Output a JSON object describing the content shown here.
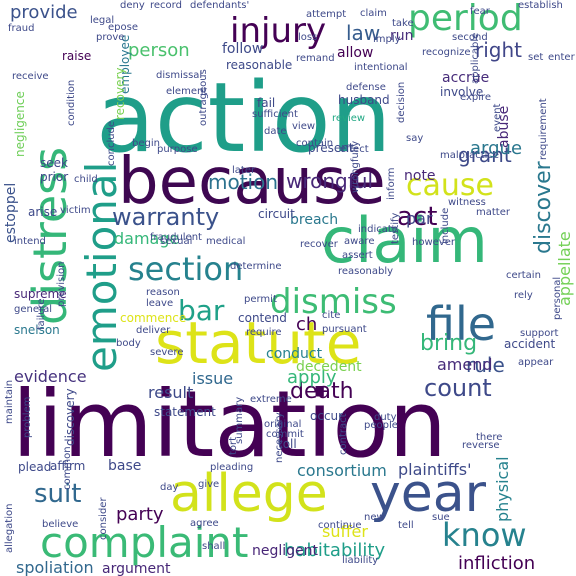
{
  "words": [
    {
      "text": "action",
      "color": "#1f9e89"
    },
    {
      "text": "limitation",
      "color": "#440154"
    },
    {
      "text": "because",
      "color": "#3e0751"
    },
    {
      "text": "distress",
      "color": "#35b779"
    },
    {
      "text": "emotional",
      "color": "#1f9e89"
    },
    {
      "text": "claim",
      "color": "#35b779"
    },
    {
      "text": "statute",
      "color": "#dde318"
    },
    {
      "text": "allege",
      "color": "#d2e21b"
    },
    {
      "text": "year",
      "color": "#3b528b"
    },
    {
      "text": "complaint",
      "color": "#3aba76"
    },
    {
      "text": "file",
      "color": "#31688e"
    },
    {
      "text": "period",
      "color": "#3fbc73"
    },
    {
      "text": "injury",
      "color": "#440154"
    },
    {
      "text": "cause",
      "color": "#d2e21b"
    },
    {
      "text": "section",
      "color": "#26828e"
    },
    {
      "text": "dismiss",
      "color": "#3dbc74"
    },
    {
      "text": "bar",
      "color": "#1fa188"
    },
    {
      "text": "warranty",
      "color": "#3b528b"
    },
    {
      "text": "act",
      "color": "#440154"
    },
    {
      "text": "know",
      "color": "#26828e"
    },
    {
      "text": "suit",
      "color": "#31688e"
    },
    {
      "text": "count",
      "color": "#3e4989"
    },
    {
      "text": "bring",
      "color": "#35b779"
    },
    {
      "text": "discover",
      "color": "#2a788e"
    },
    {
      "text": "death",
      "color": "#440154"
    },
    {
      "text": "wrongful",
      "color": "#482878"
    },
    {
      "text": "motion",
      "color": "#2c728e"
    },
    {
      "text": "law",
      "color": "#365c8d"
    },
    {
      "text": "right",
      "color": "#404688"
    },
    {
      "text": "provide",
      "color": "#3b528b"
    },
    {
      "text": "person",
      "color": "#4ac16d"
    },
    {
      "text": "grant",
      "color": "#3e4a89"
    },
    {
      "text": "argue",
      "color": "#2a778e"
    },
    {
      "text": "damage",
      "color": "#35b779"
    },
    {
      "text": "appellate",
      "color": "#73d056"
    },
    {
      "text": "rule",
      "color": "#3b528b"
    },
    {
      "text": "amend",
      "color": "#472c7a"
    },
    {
      "text": "ch",
      "color": "#440154"
    },
    {
      "text": "apply",
      "color": "#35b779"
    },
    {
      "text": "result",
      "color": "#3e4a89"
    },
    {
      "text": "issue",
      "color": "#31688e"
    },
    {
      "text": "evidence",
      "color": "#46327e"
    },
    {
      "text": "conduct",
      "color": "#26828e"
    },
    {
      "text": "decedent",
      "color": "#7ad151"
    },
    {
      "text": "consortium",
      "color": "#2a788e"
    },
    {
      "text": "plaintiffs'",
      "color": "#3e4a89"
    },
    {
      "text": "party",
      "color": "#440154"
    },
    {
      "text": "habitability",
      "color": "#1f9e89"
    },
    {
      "text": "infliction",
      "color": "#440154"
    },
    {
      "text": "suffer",
      "color": "#dde318"
    },
    {
      "text": "negligent",
      "color": "#482677"
    },
    {
      "text": "physical",
      "color": "#26828e"
    },
    {
      "text": "spoliation",
      "color": "#31688e"
    },
    {
      "text": "argument",
      "color": "#482878"
    },
    {
      "text": "supreme",
      "color": "#482878"
    },
    {
      "text": "snelson",
      "color": "#2a788e"
    },
    {
      "text": "estoppel",
      "color": "#3b528b"
    },
    {
      "text": "negligence",
      "color": "#6ece58"
    },
    {
      "text": "accrue",
      "color": "#472c7a"
    },
    {
      "text": "abuse",
      "color": "#482878"
    },
    {
      "text": "breach",
      "color": "#2a788e"
    },
    {
      "text": "par",
      "color": "#404688"
    },
    {
      "text": "note",
      "color": "#482878"
    },
    {
      "text": "follow",
      "color": "#3e4a89"
    },
    {
      "text": "reasonable",
      "color": "#3e4a89"
    },
    {
      "text": "allow",
      "color": "#440154"
    },
    {
      "text": "run",
      "color": "#472d7b"
    },
    {
      "text": "deny",
      "color": "#3e4989"
    },
    {
      "text": "record",
      "color": "#3e4989"
    },
    {
      "text": "defendants'",
      "color": "#3e4989"
    },
    {
      "text": "imply",
      "color": "#3e4989"
    },
    {
      "text": "remand",
      "color": "#3e4989"
    },
    {
      "text": "loss",
      "color": "#3e4989"
    },
    {
      "text": "raise",
      "color": "#440154"
    },
    {
      "text": "receive",
      "color": "#3e4989"
    },
    {
      "text": "employee",
      "color": "#2a788e"
    },
    {
      "text": "recovery",
      "color": "#7ad151"
    },
    {
      "text": "seek",
      "color": "#3e4989"
    },
    {
      "text": "prior",
      "color": "#3e4989"
    },
    {
      "text": "arise",
      "color": "#3e4989"
    },
    {
      "text": "victim",
      "color": "#3e4989"
    },
    {
      "text": "involve",
      "color": "#3e4989"
    },
    {
      "text": "husband",
      "color": "#3e4989"
    },
    {
      "text": "fail",
      "color": "#3e4989"
    },
    {
      "text": "review",
      "color": "#22a884"
    },
    {
      "text": "defense",
      "color": "#3e4989"
    },
    {
      "text": "intentional",
      "color": "#3e4989"
    },
    {
      "text": "date",
      "color": "#3e4989"
    },
    {
      "text": "determine",
      "color": "#3e4989"
    },
    {
      "text": "reason",
      "color": "#3e4989"
    },
    {
      "text": "leave",
      "color": "#3e4989"
    },
    {
      "text": "commence",
      "color": "#dde318"
    },
    {
      "text": "circuit",
      "color": "#3e4989"
    },
    {
      "text": "contend",
      "color": "#3e4989"
    },
    {
      "text": "pursuant",
      "color": "#3e4989"
    },
    {
      "text": "statement",
      "color": "#3e4989"
    },
    {
      "text": "occur",
      "color": "#3e4989"
    },
    {
      "text": "toll",
      "color": "#3e4989"
    },
    {
      "text": "base",
      "color": "#3e4989"
    },
    {
      "text": "affirm",
      "color": "#3e4989"
    },
    {
      "text": "plead",
      "color": "#3e4989"
    },
    {
      "text": "pleading",
      "color": "#3e4989"
    },
    {
      "text": "give",
      "color": "#3e4989"
    },
    {
      "text": "body",
      "color": "#3e4989"
    },
    {
      "text": "severe",
      "color": "#3e4989"
    },
    {
      "text": "support",
      "color": "#3e4989"
    },
    {
      "text": "accident",
      "color": "#3e4989"
    },
    {
      "text": "people",
      "color": "#3e4989"
    },
    {
      "text": "duty",
      "color": "#3e4989"
    },
    {
      "text": "summary",
      "color": "#3e4989"
    },
    {
      "text": "discovery",
      "color": "#3e4989"
    },
    {
      "text": "problem",
      "color": "#3e4989"
    },
    {
      "text": "maintain",
      "color": "#3e4989"
    },
    {
      "text": "allegation",
      "color": "#3e4989"
    },
    {
      "text": "liability",
      "color": "#3e4989"
    },
    {
      "text": "new",
      "color": "#3e4989"
    },
    {
      "text": "tell",
      "color": "#3e4989"
    },
    {
      "text": "continue",
      "color": "#3e4989"
    },
    {
      "text": "sue",
      "color": "#3e4989"
    },
    {
      "text": "shall",
      "color": "#3e4989"
    },
    {
      "text": "extreme",
      "color": "#3e4989"
    },
    {
      "text": "present",
      "color": "#3e4989"
    },
    {
      "text": "element",
      "color": "#3e4989"
    },
    {
      "text": "dismissal",
      "color": "#3e4989"
    },
    {
      "text": "outrageous",
      "color": "#3e4989"
    },
    {
      "text": "conclude",
      "color": "#3e4989"
    },
    {
      "text": "begin",
      "color": "#3e4989"
    },
    {
      "text": "condition",
      "color": "#3e4989"
    },
    {
      "text": "set",
      "color": "#3e4989"
    },
    {
      "text": "take",
      "color": "#3e4989"
    },
    {
      "text": "legal",
      "color": "#3e4989"
    },
    {
      "text": "prove",
      "color": "#3e4989"
    },
    {
      "text": "event",
      "color": "#3e4989"
    },
    {
      "text": "expire",
      "color": "#3e4989"
    },
    {
      "text": "personal",
      "color": "#3e4989"
    },
    {
      "text": "reasonably",
      "color": "#3e4989"
    },
    {
      "text": "assert",
      "color": "#3e4989"
    },
    {
      "text": "include",
      "color": "#3e4989"
    },
    {
      "text": "testify",
      "color": "#3e4989"
    },
    {
      "text": "recover",
      "color": "#3e4989"
    },
    {
      "text": "sexual",
      "color": "#3e4989"
    },
    {
      "text": "cite",
      "color": "#3e4989"
    },
    {
      "text": "reverse",
      "color": "#3e4989"
    },
    {
      "text": "however",
      "color": "#3e4989"
    },
    {
      "text": "malpractice",
      "color": "#3e4989"
    },
    {
      "text": "say",
      "color": "#3e4989"
    },
    {
      "text": "view",
      "color": "#3e4989"
    },
    {
      "text": "contain",
      "color": "#3e4989"
    },
    {
      "text": "effect",
      "color": "#3e4989"
    },
    {
      "text": "fear",
      "color": "#3e4989"
    },
    {
      "text": "second",
      "color": "#3e4989"
    },
    {
      "text": "recognize",
      "color": "#3e4989"
    },
    {
      "text": "enter",
      "color": "#3e4989"
    },
    {
      "text": "requirement",
      "color": "#3e4989"
    },
    {
      "text": "applicable",
      "color": "#3e4989"
    },
    {
      "text": "establish",
      "color": "#3e4989"
    },
    {
      "text": "attempt",
      "color": "#3e4989"
    },
    {
      "text": "fraud",
      "color": "#3e4989"
    },
    {
      "text": "epose",
      "color": "#3e4989"
    },
    {
      "text": "witness",
      "color": "#3e4989"
    },
    {
      "text": "matter",
      "color": "#3e4989"
    },
    {
      "text": "purpose",
      "color": "#3e4989"
    },
    {
      "text": "sufficient",
      "color": "#3e4989"
    },
    {
      "text": "medical",
      "color": "#3e4989"
    },
    {
      "text": "indicate",
      "color": "#3e4989"
    },
    {
      "text": "wrongfully",
      "color": "#3e4989"
    },
    {
      "text": "decision",
      "color": "#3e4989"
    },
    {
      "text": "aware",
      "color": "#3e4989"
    },
    {
      "text": "later",
      "color": "#3e4989"
    },
    {
      "text": "fraudulent",
      "color": "#3e4989"
    },
    {
      "text": "general",
      "color": "#3e4989"
    },
    {
      "text": "failure",
      "color": "#3e4989"
    },
    {
      "text": "provision",
      "color": "#3e4989"
    },
    {
      "text": "intend",
      "color": "#3e4989"
    },
    {
      "text": "deliver",
      "color": "#3e4989"
    },
    {
      "text": "original",
      "color": "#3e4989"
    },
    {
      "text": "commit",
      "color": "#3e4989"
    },
    {
      "text": "necessary",
      "color": "#3e4989"
    },
    {
      "text": "tort",
      "color": "#3e4989"
    },
    {
      "text": "contract",
      "color": "#3e4989"
    },
    {
      "text": "agree",
      "color": "#3e4989"
    },
    {
      "text": "day",
      "color": "#3e4989"
    },
    {
      "text": "believe",
      "color": "#3e4989"
    },
    {
      "text": "consider",
      "color": "#3e4989"
    },
    {
      "text": "common",
      "color": "#3e4989"
    },
    {
      "text": "require",
      "color": "#3e4989"
    },
    {
      "text": "certain",
      "color": "#3e4989"
    },
    {
      "text": "there",
      "color": "#3e4989"
    },
    {
      "text": "rely",
      "color": "#3e4989"
    },
    {
      "text": "appear",
      "color": "#3e4989"
    },
    {
      "text": "permit",
      "color": "#3e4989"
    },
    {
      "text": "inform",
      "color": "#3e4989"
    },
    {
      "text": "child",
      "color": "#3e4989"
    },
    {
      "text": "claim",
      "color": "#3e4989"
    }
  ],
  "palette_note_colors": {
    "background": "#ffffff"
  }
}
